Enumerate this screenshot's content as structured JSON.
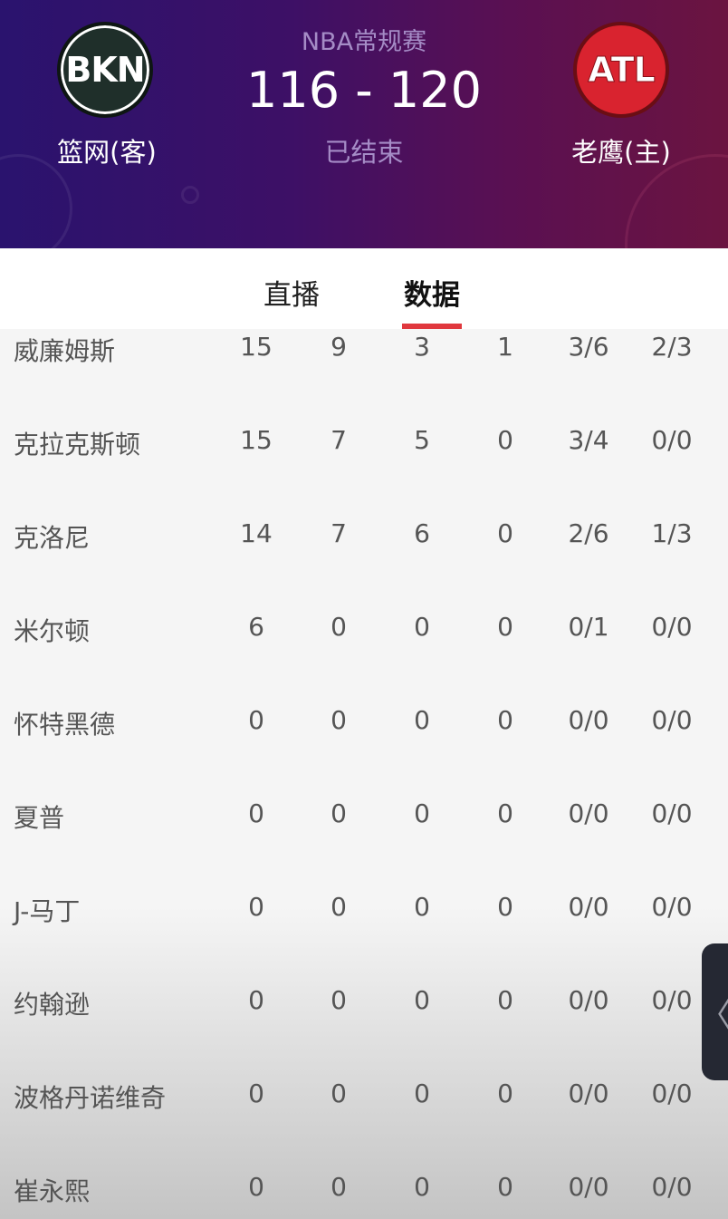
{
  "header": {
    "league": "NBA常规赛",
    "score": "116 - 120",
    "status": "已结束",
    "away": {
      "name": "篮网(客)",
      "logo_text": "BKN",
      "color": "#1f2f2a"
    },
    "home": {
      "name": "老鹰(主)",
      "logo_text": "ATL",
      "color": "#d9232f"
    }
  },
  "tabs": [
    {
      "label": "直播",
      "active": false
    },
    {
      "label": "数据",
      "active": true
    }
  ],
  "accent_color": "#e0383e",
  "players": [
    {
      "name": "威廉姆斯",
      "stats": [
        "15",
        "9",
        "3",
        "1",
        "3/6",
        "2/3"
      ]
    },
    {
      "name": "克拉克斯顿",
      "stats": [
        "15",
        "7",
        "5",
        "0",
        "3/4",
        "0/0"
      ]
    },
    {
      "name": "克洛尼",
      "stats": [
        "14",
        "7",
        "6",
        "0",
        "2/6",
        "1/3"
      ]
    },
    {
      "name": "米尔顿",
      "stats": [
        "6",
        "0",
        "0",
        "0",
        "0/1",
        "0/0"
      ]
    },
    {
      "name": "怀特黑德",
      "stats": [
        "0",
        "0",
        "0",
        "0",
        "0/0",
        "0/0"
      ]
    },
    {
      "name": "夏普",
      "stats": [
        "0",
        "0",
        "0",
        "0",
        "0/0",
        "0/0"
      ]
    },
    {
      "name": "J-马丁",
      "stats": [
        "0",
        "0",
        "0",
        "0",
        "0/0",
        "0/0"
      ]
    },
    {
      "name": "约翰逊",
      "stats": [
        "0",
        "0",
        "0",
        "0",
        "0/0",
        "0/0"
      ]
    },
    {
      "name": "波格丹诺维奇",
      "stats": [
        "0",
        "0",
        "0",
        "0",
        "0/0",
        "0/0"
      ]
    },
    {
      "name": "崔永熙",
      "stats": [
        "0",
        "0",
        "0",
        "0",
        "0/0",
        "0/0"
      ]
    }
  ],
  "side_handle": {
    "icon": "chevron-left-icon",
    "glyph": "〈"
  }
}
